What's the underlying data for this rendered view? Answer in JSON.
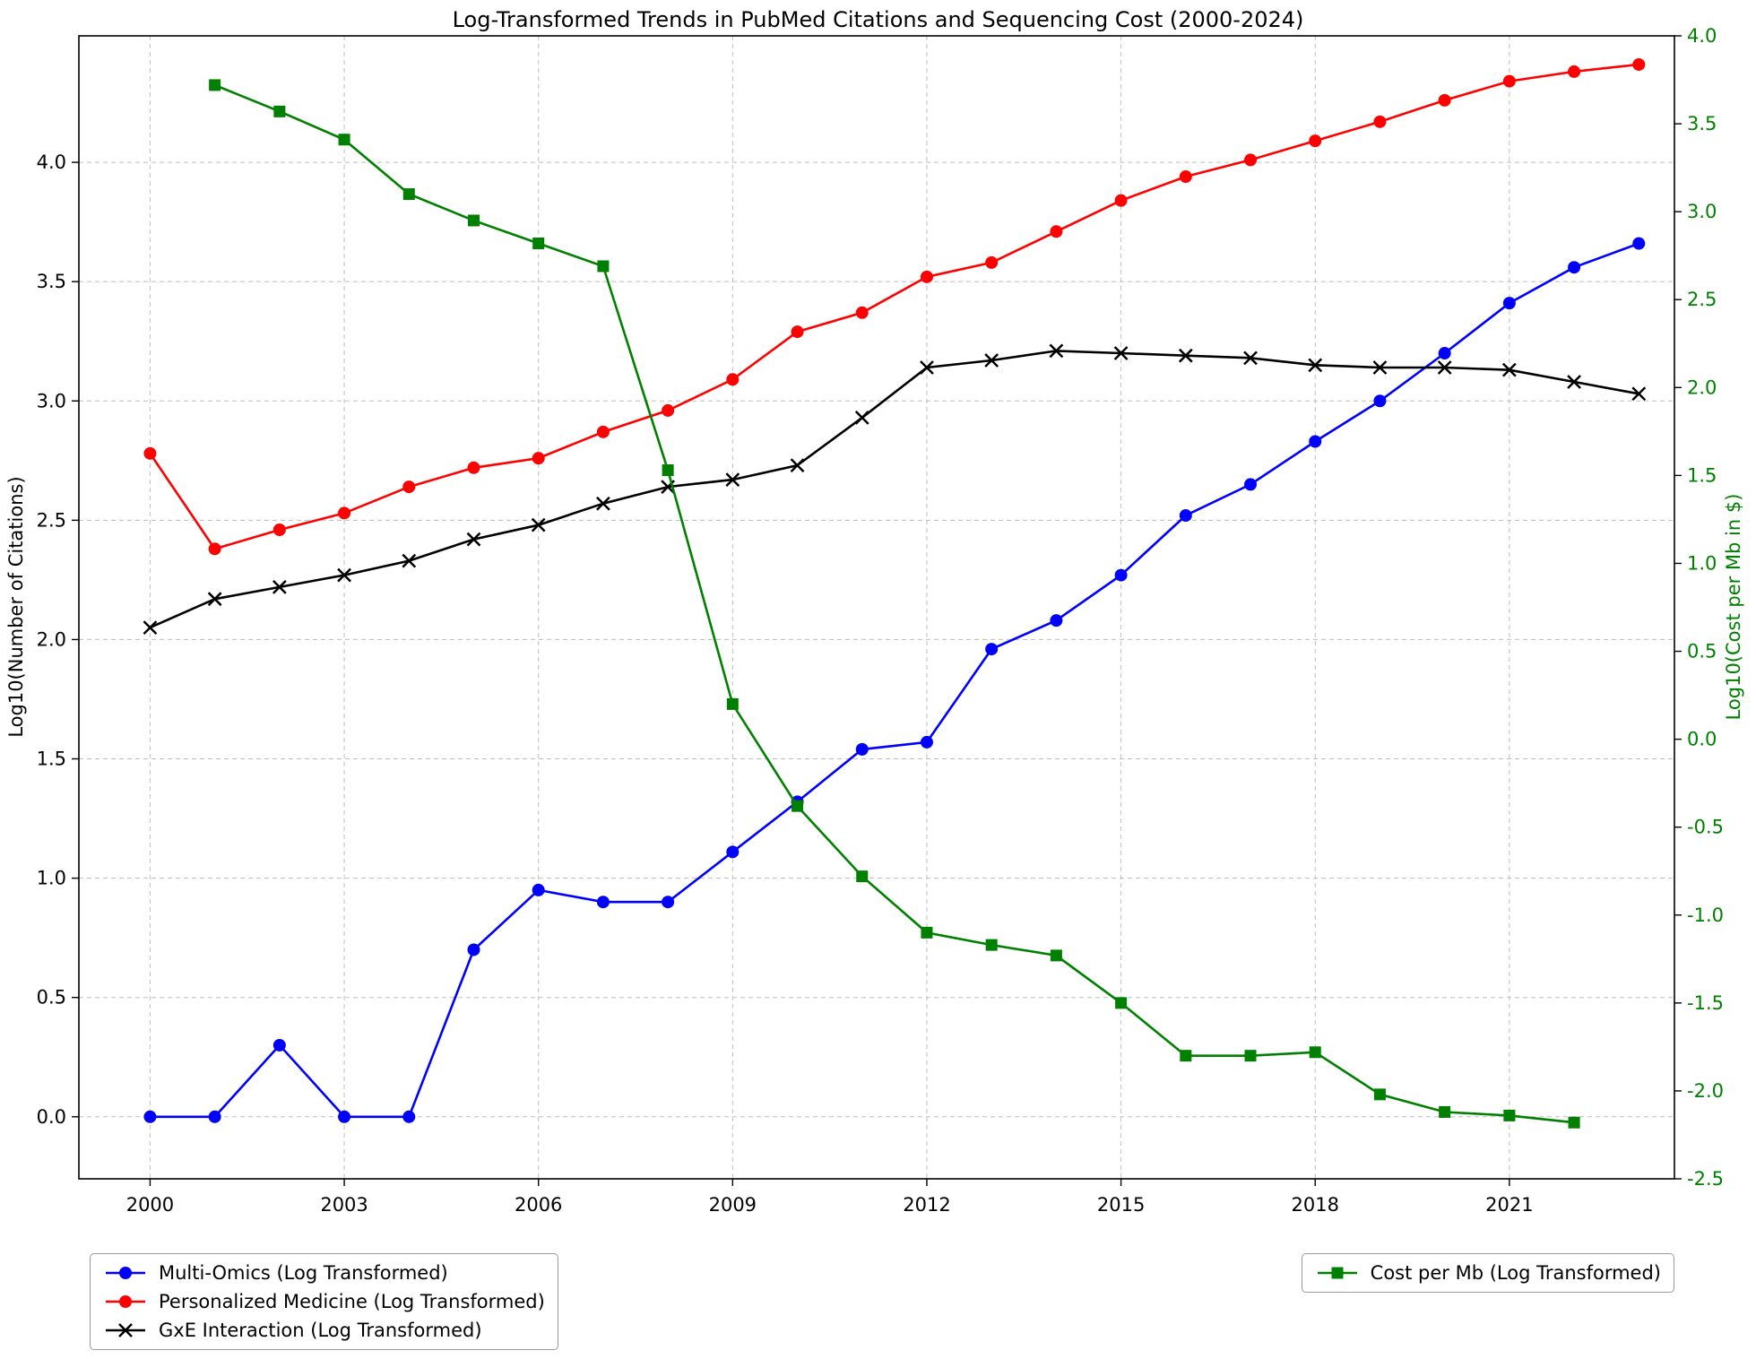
{
  "chart_data": {
    "type": "line",
    "title": "Log-Transformed Trends in PubMed Citations and Sequencing Cost (2000-2024)",
    "grid": true,
    "legend_position": [
      "bottom-left",
      "bottom-right"
    ],
    "xlim": [
      1998.9,
      2023.55
    ],
    "x_ticks": [
      2000,
      2003,
      2006,
      2009,
      2012,
      2015,
      2018,
      2021
    ],
    "left_axis": {
      "label": "Log10(Number of Citations)",
      "lim": [
        -0.26,
        4.53
      ],
      "ticks": [
        0.0,
        0.5,
        1.0,
        1.5,
        2.0,
        2.5,
        3.0,
        3.5,
        4.0
      ],
      "color": "#000000"
    },
    "right_axis": {
      "label": "Log10(Cost per Mb in $)",
      "lim": [
        -2.5,
        4.0
      ],
      "ticks": [
        -2.5,
        -2.0,
        -1.5,
        -1.0,
        -0.5,
        0.0,
        0.5,
        1.0,
        1.5,
        2.0,
        2.5,
        3.0,
        3.5,
        4.0
      ],
      "color": "#008000"
    },
    "series": [
      {
        "name": "Multi-Omics (Log Transformed)",
        "axis": "left",
        "color": "#0000ff",
        "marker": "circle",
        "x": [
          2000,
          2001,
          2002,
          2003,
          2004,
          2005,
          2006,
          2007,
          2008,
          2009,
          2010,
          2011,
          2012,
          2013,
          2014,
          2015,
          2016,
          2017,
          2018,
          2019,
          2020,
          2021,
          2022,
          2023
        ],
        "values": [
          0.0,
          0.0,
          0.3,
          0.0,
          0.0,
          0.7,
          0.95,
          0.9,
          0.9,
          1.11,
          1.32,
          1.54,
          1.57,
          1.96,
          2.08,
          2.27,
          2.52,
          2.65,
          2.83,
          3.0,
          3.2,
          3.41,
          3.56,
          3.66
        ]
      },
      {
        "name": "Personalized Medicine (Log Transformed)",
        "axis": "left",
        "color": "#ff0000",
        "marker": "circle",
        "x": [
          2000,
          2001,
          2002,
          2003,
          2004,
          2005,
          2006,
          2007,
          2008,
          2009,
          2010,
          2011,
          2012,
          2013,
          2014,
          2015,
          2016,
          2017,
          2018,
          2019,
          2020,
          2021,
          2022,
          2023
        ],
        "values": [
          2.78,
          2.38,
          2.46,
          2.53,
          2.64,
          2.72,
          2.76,
          2.87,
          2.96,
          3.09,
          3.29,
          3.37,
          3.52,
          3.58,
          3.71,
          3.84,
          3.94,
          4.01,
          4.09,
          4.17,
          4.26,
          4.34,
          4.38,
          4.41
        ]
      },
      {
        "name": "GxE Interaction (Log Transformed)",
        "axis": "left",
        "color": "#000000",
        "marker": "x",
        "x": [
          2000,
          2001,
          2002,
          2003,
          2004,
          2005,
          2006,
          2007,
          2008,
          2009,
          2010,
          2011,
          2012,
          2013,
          2014,
          2015,
          2016,
          2017,
          2018,
          2019,
          2020,
          2021,
          2022,
          2023
        ],
        "values": [
          2.05,
          2.17,
          2.22,
          2.27,
          2.33,
          2.42,
          2.48,
          2.57,
          2.64,
          2.67,
          2.73,
          2.93,
          3.14,
          3.17,
          3.21,
          3.2,
          3.19,
          3.18,
          3.15,
          3.14,
          3.14,
          3.13,
          3.08,
          3.03
        ]
      },
      {
        "name": "Cost per Mb (Log Transformed)",
        "axis": "right",
        "color": "#008000",
        "marker": "square",
        "x": [
          2001,
          2002,
          2003,
          2004,
          2005,
          2006,
          2007,
          2008,
          2009,
          2010,
          2011,
          2012,
          2013,
          2014,
          2015,
          2016,
          2017,
          2018,
          2019,
          2020,
          2021,
          2022
        ],
        "values": [
          3.72,
          3.57,
          3.41,
          3.1,
          2.95,
          2.82,
          2.69,
          1.53,
          0.2,
          -0.38,
          -0.78,
          -1.1,
          -1.17,
          -1.23,
          -1.5,
          -1.8,
          -1.8,
          -1.78,
          -2.02,
          -2.12,
          -2.14,
          -2.18
        ]
      }
    ]
  }
}
